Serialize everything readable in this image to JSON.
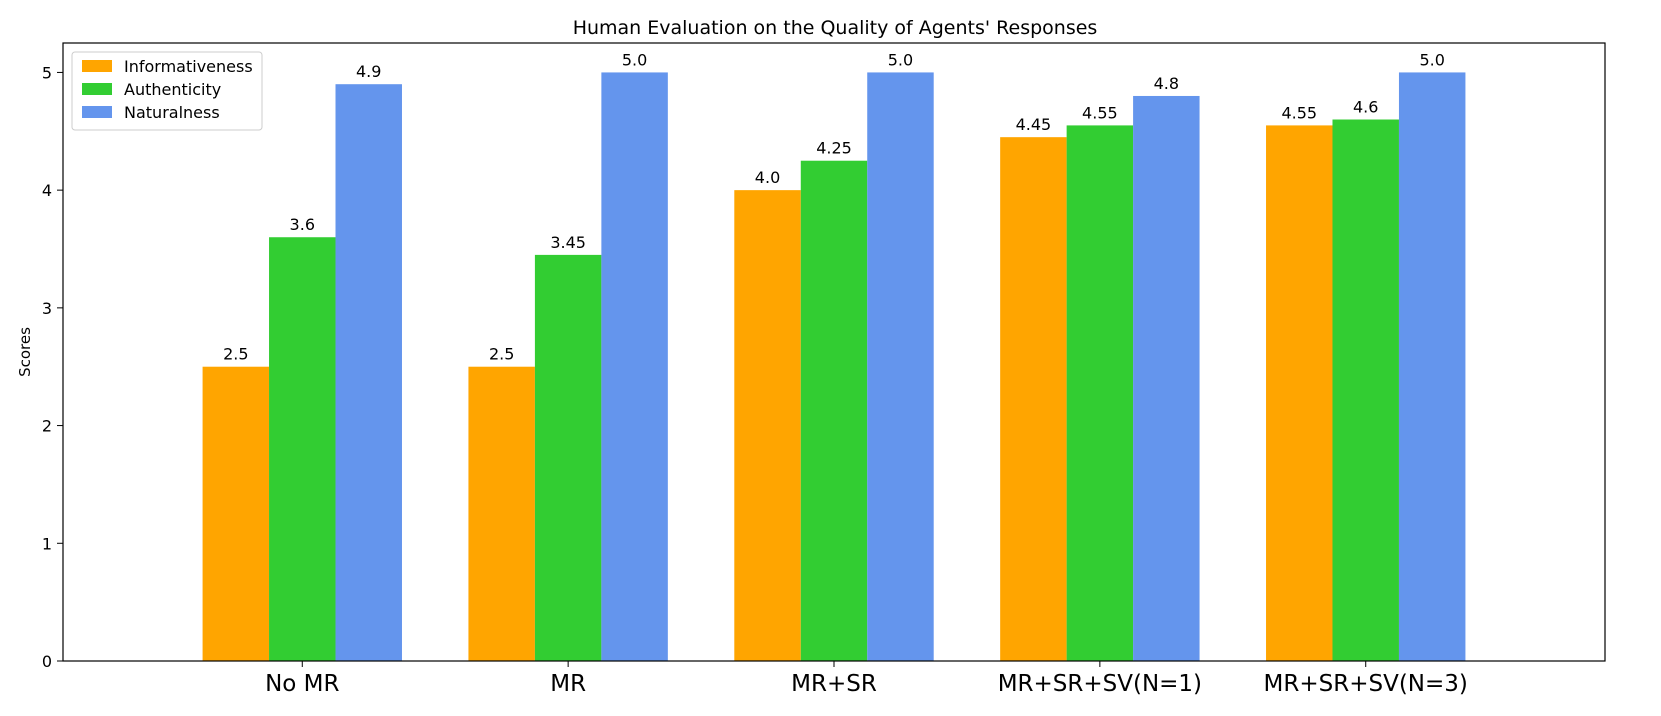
{
  "chart_data": {
    "type": "bar",
    "title": "Human Evaluation on the Quality of Agents' Responses",
    "xlabel": "",
    "ylabel": "Scores",
    "ylim": [
      0,
      5.25
    ],
    "yticks": [
      "0",
      "1",
      "2",
      "3",
      "4",
      "5"
    ],
    "categories": [
      "No MR",
      "MR",
      "MR+SR",
      "MR+SR+SV(N=1)",
      "MR+SR+SV(N=3)"
    ],
    "series": [
      {
        "name": "Informativeness",
        "color": "#FFA500",
        "values": [
          2.5,
          2.5,
          4.0,
          4.45,
          4.55
        ],
        "labels": [
          "2.5",
          "2.5",
          "4.0",
          "4.45",
          "4.55"
        ]
      },
      {
        "name": "Authenticity",
        "color": "#32CD32",
        "values": [
          3.6,
          3.45,
          4.25,
          4.55,
          4.6
        ],
        "labels": [
          "3.6",
          "3.45",
          "4.25",
          "4.55",
          "4.6"
        ]
      },
      {
        "name": "Naturalness",
        "color": "#6495ED",
        "values": [
          4.9,
          5.0,
          5.0,
          4.8,
          5.0
        ],
        "labels": [
          "4.9",
          "5.0",
          "5.0",
          "4.8",
          "5.0"
        ]
      }
    ],
    "legend": "top-left",
    "grid": false
  }
}
